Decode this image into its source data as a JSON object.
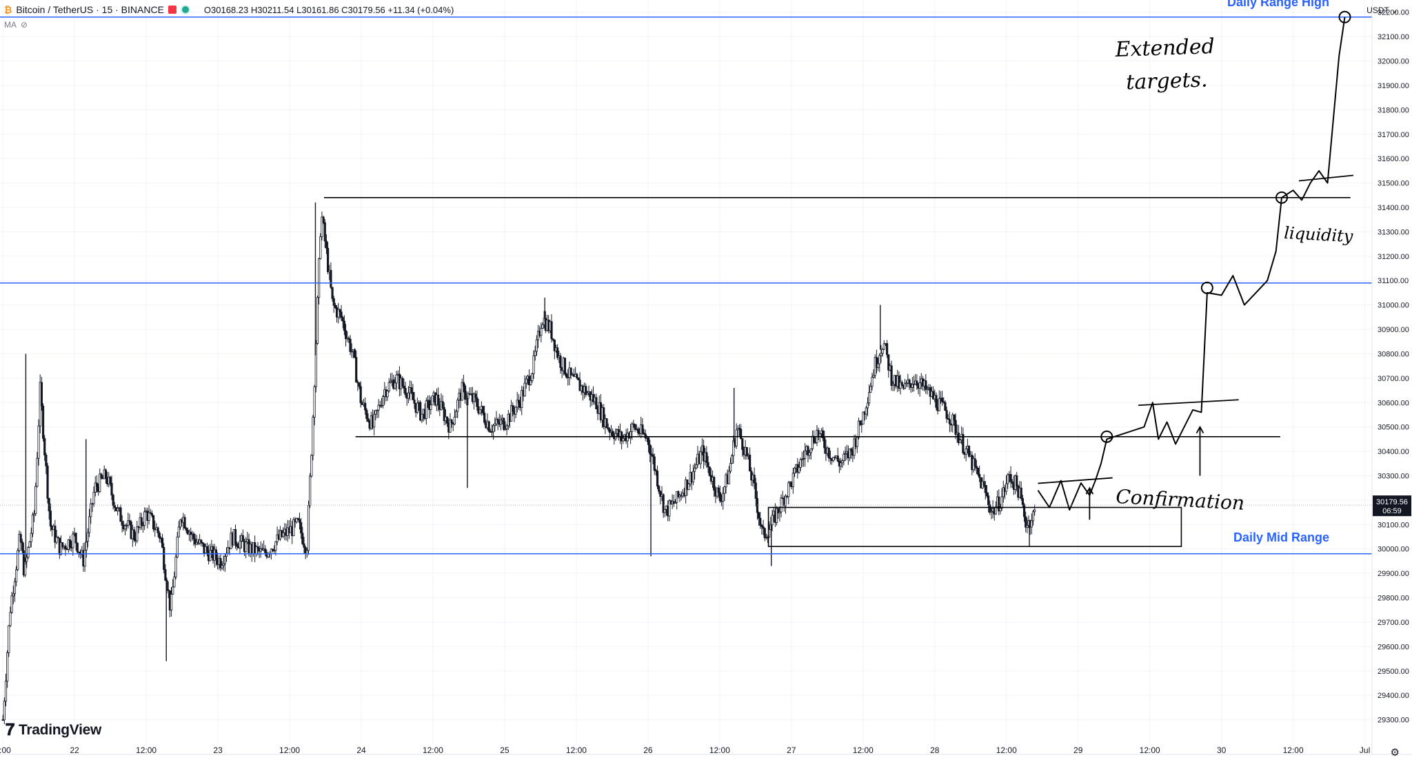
{
  "header": {
    "symbol": "Bitcoin / TetherUS · 15 · BINANCE",
    "ohlc": "O30168.23 H30211.54 L30161.86 C30179.56 +11.34 (+0.04%)",
    "indicator": "MA",
    "currency": "USDT"
  },
  "branding": {
    "logo_text": "TradingView"
  },
  "colors": {
    "candle": "#131722",
    "level_line": "#2962ff",
    "level_label": "#2962ff",
    "price_tag": "#131722",
    "grid": "#f0f3fa"
  },
  "icons": {
    "flag": "flag-icon",
    "status": "status-dot-icon",
    "eye": "eye-off-icon",
    "settings": "gear-icon"
  },
  "chart_data": {
    "type": "candlestick",
    "symbol": "BTCUSDT",
    "interval": "15",
    "ylim": [
      29200,
      32250
    ],
    "y_ticks": [
      29300,
      29400,
      29500,
      29600,
      29700,
      29800,
      29900,
      30000,
      30100,
      30200,
      30300,
      30400,
      30500,
      30600,
      30700,
      30800,
      30900,
      31000,
      31100,
      31200,
      31300,
      31400,
      31500,
      31600,
      31700,
      31800,
      31900,
      32000,
      32100,
      32200
    ],
    "x_ticks": [
      {
        "label": "2:00",
        "pos": 0.0
      },
      {
        "label": "22",
        "pos": 0.5
      },
      {
        "label": "12:00",
        "pos": 1.0
      },
      {
        "label": "23",
        "pos": 1.5
      },
      {
        "label": "12:00",
        "pos": 2.0
      },
      {
        "label": "24",
        "pos": 2.5
      },
      {
        "label": "12:00",
        "pos": 3.0
      },
      {
        "label": "25",
        "pos": 3.5
      },
      {
        "label": "12:00",
        "pos": 4.0
      },
      {
        "label": "26",
        "pos": 4.5
      },
      {
        "label": "12:00",
        "pos": 5.0
      },
      {
        "label": "27",
        "pos": 5.5
      },
      {
        "label": "12:00",
        "pos": 6.0
      },
      {
        "label": "28",
        "pos": 6.5
      },
      {
        "label": "12:00",
        "pos": 7.0
      },
      {
        "label": "29",
        "pos": 7.5
      },
      {
        "label": "12:00",
        "pos": 8.0
      },
      {
        "label": "30",
        "pos": 8.5
      },
      {
        "label": "12:00",
        "pos": 9.0
      },
      {
        "label": "Jul",
        "pos": 9.5
      }
    ],
    "last_price": "30179.56",
    "countdown": "06:59",
    "price_path": [
      [
        0.0,
        29300
      ],
      [
        0.05,
        29750
      ],
      [
        0.12,
        30050
      ],
      [
        0.15,
        29900
      ],
      [
        0.22,
        30150
      ],
      [
        0.26,
        30650
      ],
      [
        0.33,
        30100
      ],
      [
        0.4,
        30000
      ],
      [
        0.5,
        30050
      ],
      [
        0.56,
        29950
      ],
      [
        0.64,
        30250
      ],
      [
        0.72,
        30300
      ],
      [
        0.8,
        30150
      ],
      [
        0.92,
        30050
      ],
      [
        1.0,
        30150
      ],
      [
        1.1,
        30050
      ],
      [
        1.17,
        29750
      ],
      [
        1.24,
        30150
      ],
      [
        1.32,
        30050
      ],
      [
        1.4,
        30000
      ],
      [
        1.52,
        29950
      ],
      [
        1.6,
        30050
      ],
      [
        1.72,
        30000
      ],
      [
        1.82,
        29980
      ],
      [
        1.94,
        30050
      ],
      [
        2.06,
        30100
      ],
      [
        2.12,
        30000
      ],
      [
        2.16,
        30500
      ],
      [
        2.22,
        31380
      ],
      [
        2.26,
        31200
      ],
      [
        2.3,
        31000
      ],
      [
        2.36,
        30950
      ],
      [
        2.44,
        30800
      ],
      [
        2.5,
        30600
      ],
      [
        2.58,
        30500
      ],
      [
        2.66,
        30650
      ],
      [
        2.74,
        30700
      ],
      [
        2.82,
        30650
      ],
      [
        2.92,
        30550
      ],
      [
        3.02,
        30620
      ],
      [
        3.12,
        30500
      ],
      [
        3.2,
        30650
      ],
      [
        3.3,
        30600
      ],
      [
        3.4,
        30500
      ],
      [
        3.5,
        30520
      ],
      [
        3.6,
        30600
      ],
      [
        3.7,
        30750
      ],
      [
        3.76,
        30950
      ],
      [
        3.82,
        30900
      ],
      [
        3.88,
        30780
      ],
      [
        3.96,
        30700
      ],
      [
        4.06,
        30650
      ],
      [
        4.14,
        30600
      ],
      [
        4.22,
        30500
      ],
      [
        4.32,
        30450
      ],
      [
        4.4,
        30500
      ],
      [
        4.5,
        30450
      ],
      [
        4.56,
        30300
      ],
      [
        4.62,
        30150
      ],
      [
        4.7,
        30200
      ],
      [
        4.8,
        30300
      ],
      [
        4.88,
        30400
      ],
      [
        4.94,
        30300
      ],
      [
        5.0,
        30200
      ],
      [
        5.06,
        30300
      ],
      [
        5.12,
        30500
      ],
      [
        5.18,
        30400
      ],
      [
        5.24,
        30250
      ],
      [
        5.3,
        30050
      ],
      [
        5.36,
        30100
      ],
      [
        5.44,
        30200
      ],
      [
        5.52,
        30300
      ],
      [
        5.6,
        30400
      ],
      [
        5.68,
        30480
      ],
      [
        5.76,
        30400
      ],
      [
        5.84,
        30350
      ],
      [
        5.92,
        30400
      ],
      [
        6.0,
        30550
      ],
      [
        6.08,
        30750
      ],
      [
        6.14,
        30850
      ],
      [
        6.2,
        30700
      ],
      [
        6.28,
        30650
      ],
      [
        6.36,
        30700
      ],
      [
        6.44,
        30650
      ],
      [
        6.52,
        30600
      ],
      [
        6.6,
        30550
      ],
      [
        6.68,
        30450
      ],
      [
        6.76,
        30350
      ],
      [
        6.84,
        30250
      ],
      [
        6.9,
        30150
      ],
      [
        6.96,
        30200
      ],
      [
        7.02,
        30300
      ],
      [
        7.08,
        30250
      ],
      [
        7.14,
        30100
      ],
      [
        7.2,
        30150
      ]
    ],
    "spikes": [
      [
        0.16,
        30800
      ],
      [
        0.58,
        30450
      ],
      [
        1.14,
        29540
      ],
      [
        2.18,
        31420
      ],
      [
        3.24,
        30250
      ],
      [
        3.78,
        31030
      ],
      [
        4.52,
        29970
      ],
      [
        5.1,
        30660
      ],
      [
        5.36,
        29930
      ],
      [
        6.12,
        31000
      ],
      [
        7.16,
        30010
      ]
    ],
    "levels": [
      {
        "label": "Daily Range High",
        "value": 32180
      },
      {
        "label": "",
        "value": 31090
      },
      {
        "label": "Daily Mid Range",
        "value": 29980
      }
    ],
    "annotations": {
      "texts": [
        "Extended targets.",
        "liquidity",
        "Confirmation"
      ],
      "horizontal_lines": [
        {
          "from": 2.24,
          "to": 9.4,
          "value": 31440
        },
        {
          "from": 2.46,
          "to": 8.91,
          "value": 30460
        }
      ],
      "zone": {
        "from": 5.34,
        "to": 8.22,
        "top": 30170,
        "bottom": 30010
      },
      "projection": [
        [
          7.22,
          30240
        ],
        [
          7.3,
          30170
        ],
        [
          7.38,
          30280
        ],
        [
          7.44,
          30160
        ],
        [
          7.52,
          30270
        ],
        [
          7.58,
          30220
        ],
        [
          7.62,
          30280
        ],
        [
          7.66,
          30350
        ],
        [
          7.7,
          30450
        ],
        [
          7.96,
          30500
        ],
        [
          8.02,
          30600
        ],
        [
          8.06,
          30450
        ],
        [
          8.12,
          30520
        ],
        [
          8.18,
          30430
        ],
        [
          8.24,
          30500
        ],
        [
          8.3,
          30570
        ],
        [
          8.36,
          30560
        ],
        [
          8.4,
          31050
        ],
        [
          8.5,
          31040
        ],
        [
          8.58,
          31120
        ],
        [
          8.66,
          31000
        ],
        [
          8.74,
          31050
        ],
        [
          8.82,
          31100
        ],
        [
          8.88,
          31220
        ],
        [
          8.92,
          31440
        ],
        [
          9.0,
          31470
        ],
        [
          9.06,
          31430
        ],
        [
          9.12,
          31500
        ],
        [
          9.18,
          31550
        ],
        [
          9.24,
          31500
        ],
        [
          9.32,
          32020
        ],
        [
          9.36,
          32180
        ]
      ],
      "circles": [
        [
          7.7,
          30460
        ],
        [
          8.4,
          31070
        ],
        [
          8.92,
          31440
        ],
        [
          9.36,
          32180
        ]
      ]
    }
  }
}
